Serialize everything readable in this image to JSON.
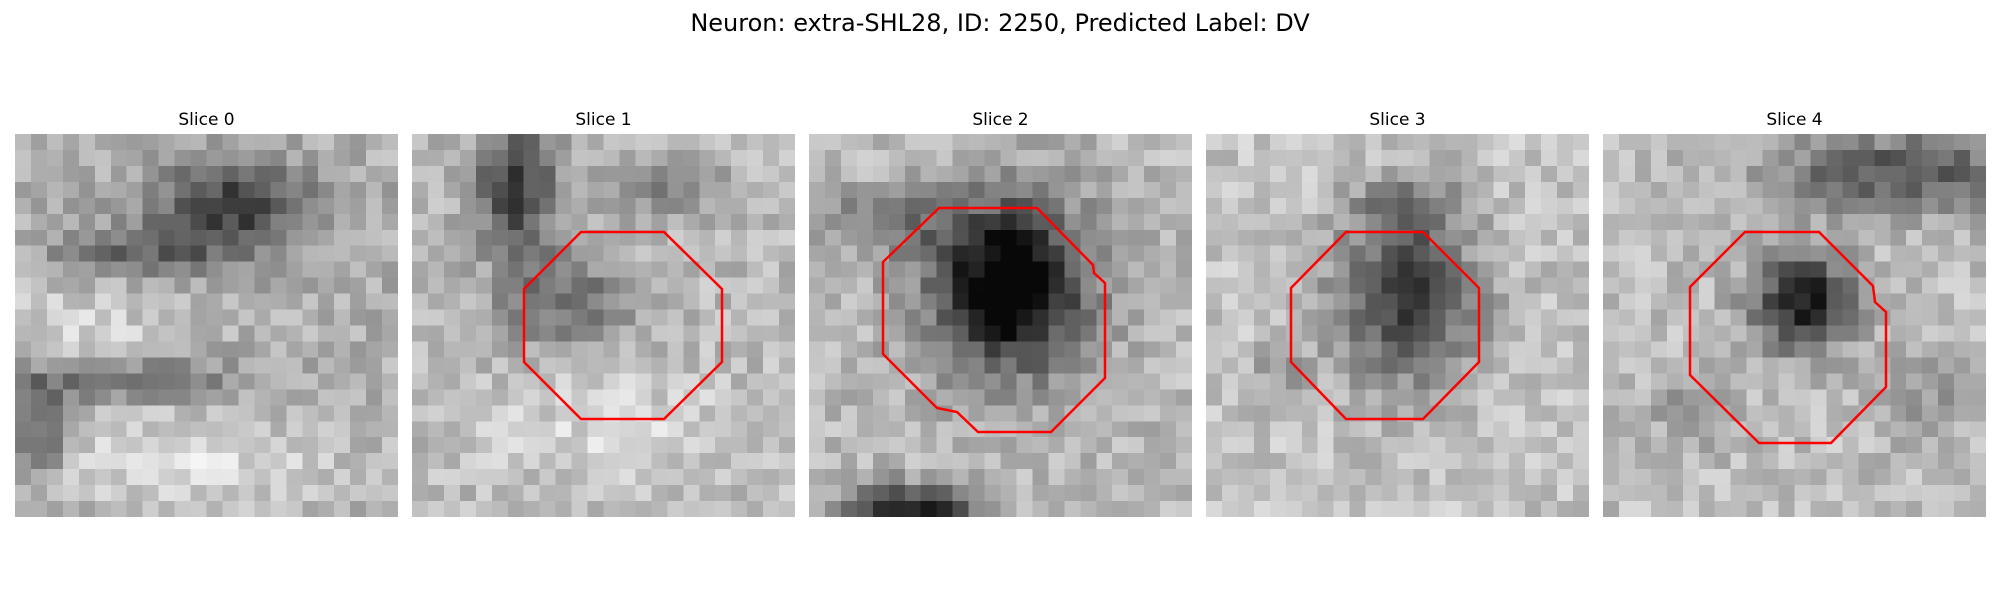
{
  "figure": {
    "title": "Neuron: extra-SHL28, ID: 2250, Predicted Label: DV",
    "outline_color": "#ff0000"
  },
  "slices": [
    {
      "title": "Slice 0",
      "has_outline": false
    },
    {
      "title": "Slice 1",
      "has_outline": true
    },
    {
      "title": "Slice 2",
      "has_outline": true
    },
    {
      "title": "Slice 3",
      "has_outline": true
    },
    {
      "title": "Slice 4",
      "has_outline": true
    }
  ]
}
